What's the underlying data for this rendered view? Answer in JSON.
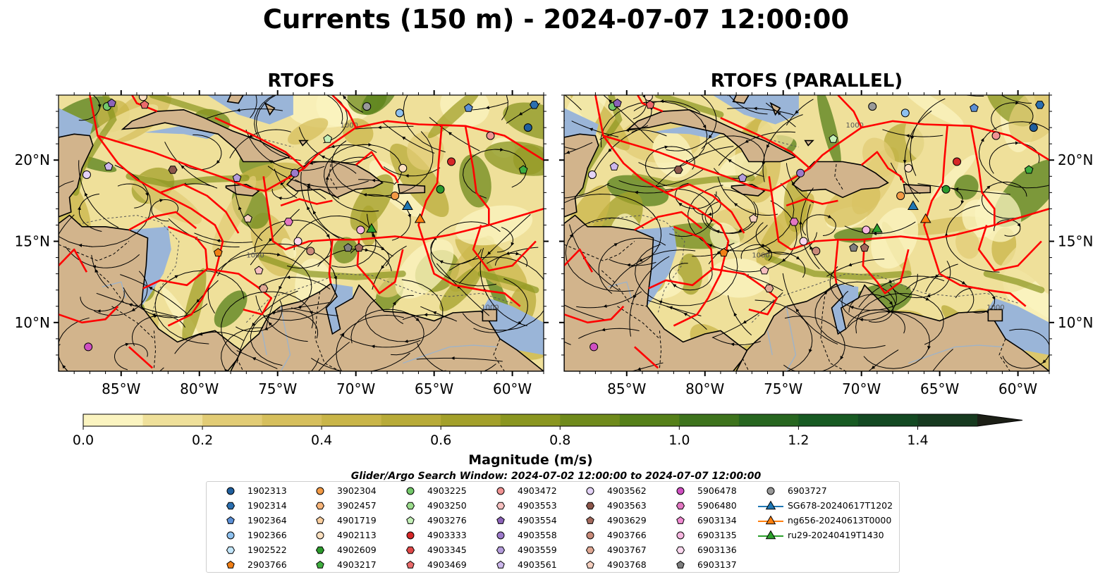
{
  "title": "Currents (150 m) - 2024-07-07 12:00:00",
  "panels": [
    {
      "title": "RTOFS"
    },
    {
      "title": "RTOFS (PARALLEL)"
    }
  ],
  "axes": {
    "lon_ticks": [
      "85°W",
      "80°W",
      "75°W",
      "70°W",
      "65°W",
      "60°W"
    ],
    "lat_ticks": [
      "20°N",
      "15°N",
      "10°N"
    ],
    "lon_range": [
      -89,
      -58
    ],
    "lat_range": [
      7,
      24
    ],
    "isobath_label": "1000"
  },
  "colorbar": {
    "label": "Magnitude (m/s)",
    "tick_labels": [
      "0.0",
      "0.2",
      "0.4",
      "0.6",
      "0.8",
      "1.0",
      "1.2",
      "1.4"
    ],
    "range": [
      0.0,
      1.5
    ],
    "extend": "max",
    "colors": [
      "#fbf4c0",
      "#efe09a",
      "#e2cc75",
      "#d6bf5c",
      "#c9b548",
      "#b8ab38",
      "#a3a02a",
      "#8a9620",
      "#6f8a1b",
      "#558019",
      "#3d731c",
      "#27661f",
      "#175a22",
      "#134922",
      "#163a1f",
      "#1a2c1b",
      "#1c1f16"
    ]
  },
  "search_window": "Glider/Argo Search Window: 2024-07-02 12:00:00 to 2024-07-07 12:00:00",
  "colors": {
    "land": "#d2b48c",
    "shelf": "#9ab5d8",
    "eez_lines": "#ff0000",
    "streamlines": "#000000"
  },
  "legend": [
    {
      "label": "1902313",
      "marker": "circle",
      "color": "#1f5f9e"
    },
    {
      "label": "1902314",
      "marker": "hexagon",
      "color": "#2b6fb0"
    },
    {
      "label": "1902364",
      "marker": "pentagon",
      "color": "#5b8fd6"
    },
    {
      "label": "1902366",
      "marker": "circle",
      "color": "#8ec1ef"
    },
    {
      "label": "1902522",
      "marker": "hexagon",
      "color": "#c3e6fb"
    },
    {
      "label": "2903766",
      "marker": "pentagon",
      "color": "#f07f16"
    },
    {
      "label": "3902304",
      "marker": "circle",
      "color": "#f39a45"
    },
    {
      "label": "3902457",
      "marker": "hexagon",
      "color": "#f8b57a"
    },
    {
      "label": "4901719",
      "marker": "pentagon",
      "color": "#fbcf9f"
    },
    {
      "label": "4902113",
      "marker": "circle",
      "color": "#fde0c0"
    },
    {
      "label": "4902609",
      "marker": "hexagon",
      "color": "#2c9a2c"
    },
    {
      "label": "4903217",
      "marker": "pentagon",
      "color": "#3fae3f"
    },
    {
      "label": "4903225",
      "marker": "circle",
      "color": "#73c86a"
    },
    {
      "label": "4903250",
      "marker": "hexagon",
      "color": "#9bdc8c"
    },
    {
      "label": "4903276",
      "marker": "pentagon",
      "color": "#c4f0b8"
    },
    {
      "label": "4903333",
      "marker": "circle",
      "color": "#d62728"
    },
    {
      "label": "4903345",
      "marker": "hexagon",
      "color": "#e04848"
    },
    {
      "label": "4903469",
      "marker": "pentagon",
      "color": "#ea6b6b"
    },
    {
      "label": "4903472",
      "marker": "circle",
      "color": "#f19393"
    },
    {
      "label": "4903553",
      "marker": "hexagon",
      "color": "#f7c0c0"
    },
    {
      "label": "4903554",
      "marker": "pentagon",
      "color": "#8c63b9"
    },
    {
      "label": "4903558",
      "marker": "circle",
      "color": "#9d7acb"
    },
    {
      "label": "4903559",
      "marker": "hexagon",
      "color": "#b49cdb"
    },
    {
      "label": "4903561",
      "marker": "pentagon",
      "color": "#cdb8ec"
    },
    {
      "label": "4903562",
      "marker": "circle",
      "color": "#e4d3f7"
    },
    {
      "label": "4903563",
      "marker": "hexagon",
      "color": "#8c564b"
    },
    {
      "label": "4903629",
      "marker": "pentagon",
      "color": "#a46a5e"
    },
    {
      "label": "4903766",
      "marker": "circle",
      "color": "#c98b7a"
    },
    {
      "label": "4903767",
      "marker": "hexagon",
      "color": "#e0a894"
    },
    {
      "label": "4903768",
      "marker": "pentagon",
      "color": "#f6d0c0"
    },
    {
      "label": "5906478",
      "marker": "circle",
      "color": "#d04fc2"
    },
    {
      "label": "5906480",
      "marker": "hexagon",
      "color": "#e377c2"
    },
    {
      "label": "6903134",
      "marker": "pentagon",
      "color": "#f08ad2"
    },
    {
      "label": "6903135",
      "marker": "circle",
      "color": "#f7b6e0"
    },
    {
      "label": "6903136",
      "marker": "hexagon",
      "color": "#fbd8ef"
    },
    {
      "label": "6903137",
      "marker": "pentagon",
      "color": "#7f7f7f"
    },
    {
      "label": "6903727",
      "marker": "circle",
      "color": "#999999"
    },
    {
      "label": "SG678-20240617T1202",
      "marker": "triangle-line",
      "color": "#1f77b4"
    },
    {
      "label": "ng656-20240613T0000",
      "marker": "triangle-line",
      "color": "#ff7f0e"
    },
    {
      "label": "ru29-20240419T1430",
      "marker": "triangle-line",
      "color": "#2ca02c"
    }
  ],
  "floats": [
    {
      "lon": -59.0,
      "lat": 22.0,
      "color": "#1f5f9e",
      "marker": "circle"
    },
    {
      "lon": -58.6,
      "lat": 23.4,
      "color": "#2b6fb0",
      "marker": "hexagon"
    },
    {
      "lon": -62.8,
      "lat": 23.2,
      "color": "#5b8fd6",
      "marker": "pentagon"
    },
    {
      "lon": -67.2,
      "lat": 22.9,
      "color": "#8ec1ef",
      "marker": "circle"
    },
    {
      "lon": -69.3,
      "lat": 23.3,
      "color": "#999999",
      "marker": "circle"
    },
    {
      "lon": -61.4,
      "lat": 21.5,
      "color": "#f19393",
      "marker": "circle"
    },
    {
      "lon": -63.9,
      "lat": 19.9,
      "color": "#d62728",
      "marker": "circle"
    },
    {
      "lon": -67.0,
      "lat": 19.5,
      "color": "#fde0c0",
      "marker": "circle"
    },
    {
      "lon": -59.3,
      "lat": 19.4,
      "color": "#3fae3f",
      "marker": "pentagon"
    },
    {
      "lon": -64.6,
      "lat": 18.2,
      "color": "#2c9a2c",
      "marker": "circle"
    },
    {
      "lon": -67.5,
      "lat": 17.8,
      "color": "#f39a45",
      "marker": "circle"
    },
    {
      "lon": -71.8,
      "lat": 21.3,
      "color": "#c4f0b8",
      "marker": "pentagon"
    },
    {
      "lon": -73.9,
      "lat": 19.2,
      "color": "#9d7acb",
      "marker": "circle"
    },
    {
      "lon": -85.9,
      "lat": 23.3,
      "color": "#73c86a",
      "marker": "circle"
    },
    {
      "lon": -85.6,
      "lat": 23.5,
      "color": "#8c63b9",
      "marker": "pentagon"
    },
    {
      "lon": -83.6,
      "lat": 23.9,
      "color": "#fde0c0",
      "marker": "circle"
    },
    {
      "lon": -83.5,
      "lat": 23.4,
      "color": "#ea6b6b",
      "marker": "pentagon"
    },
    {
      "lon": -85.8,
      "lat": 19.6,
      "color": "#cdb8ec",
      "marker": "pentagon"
    },
    {
      "lon": -87.2,
      "lat": 19.1,
      "color": "#e4d3f7",
      "marker": "circle"
    },
    {
      "lon": -81.7,
      "lat": 19.4,
      "color": "#8c564b",
      "marker": "hexagon"
    },
    {
      "lon": -77.6,
      "lat": 18.9,
      "color": "#b49cdb",
      "marker": "pentagon"
    },
    {
      "lon": -76.9,
      "lat": 16.4,
      "color": "#f6d0c0",
      "marker": "pentagon"
    },
    {
      "lon": -74.3,
      "lat": 16.2,
      "color": "#e377c2",
      "marker": "hexagon"
    },
    {
      "lon": -73.7,
      "lat": 15.0,
      "color": "#fbd8ef",
      "marker": "circle"
    },
    {
      "lon": -72.9,
      "lat": 14.4,
      "color": "#c98b7a",
      "marker": "circle"
    },
    {
      "lon": -78.8,
      "lat": 14.3,
      "color": "#f07f16",
      "marker": "pentagon"
    },
    {
      "lon": -76.2,
      "lat": 13.2,
      "color": "#f7c0c0",
      "marker": "pentagon"
    },
    {
      "lon": -75.9,
      "lat": 12.1,
      "color": "#e0a894",
      "marker": "hexagon"
    },
    {
      "lon": -70.5,
      "lat": 14.6,
      "color": "#7f7f7f",
      "marker": "pentagon"
    },
    {
      "lon": -69.8,
      "lat": 14.6,
      "color": "#a46a5e",
      "marker": "pentagon"
    },
    {
      "lon": -69.7,
      "lat": 15.7,
      "color": "#f7b6e0",
      "marker": "circle"
    },
    {
      "lon": -87.1,
      "lat": 8.5,
      "color": "#d04fc2",
      "marker": "circle"
    }
  ],
  "gliders": [
    {
      "lon": -66.7,
      "lat": 17.2,
      "color": "#1f77b4"
    },
    {
      "lon": -65.9,
      "lat": 16.4,
      "color": "#ff7f0e"
    },
    {
      "lon": -69.0,
      "lat": 15.8,
      "color": "#2ca02c"
    }
  ]
}
